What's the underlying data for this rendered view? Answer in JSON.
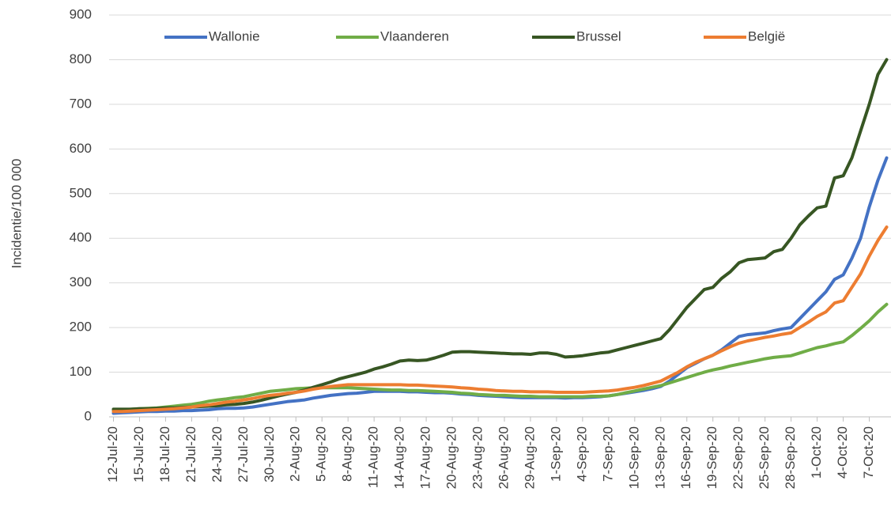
{
  "chart_data": {
    "type": "line",
    "y_label": "Incidentie/100 000",
    "categories": [
      "12-Jul-20",
      null,
      null,
      "15-Jul-20",
      null,
      null,
      "18-Jul-20",
      null,
      null,
      "21-Jul-20",
      null,
      null,
      "24-Jul-20",
      null,
      null,
      "27-Jul-20",
      null,
      null,
      "30-Jul-20",
      null,
      null,
      "2-Aug-20",
      null,
      null,
      "5-Aug-20",
      null,
      null,
      "8-Aug-20",
      null,
      null,
      "11-Aug-20",
      null,
      null,
      "14-Aug-20",
      null,
      null,
      "17-Aug-20",
      null,
      null,
      "20-Aug-20",
      null,
      null,
      "23-Aug-20",
      null,
      null,
      "26-Aug-20",
      null,
      null,
      "29-Aug-20",
      null,
      null,
      "1-Sep-20",
      null,
      null,
      "4-Sep-20",
      null,
      null,
      "7-Sep-20",
      null,
      null,
      "10-Sep-20",
      null,
      null,
      "13-Sep-20",
      null,
      null,
      "16-Sep-20",
      null,
      null,
      "19-Sep-20",
      null,
      null,
      "22-Sep-20",
      null,
      null,
      "25-Sep-20",
      null,
      null,
      "28-Sep-20",
      null,
      null,
      "1-Oct-20",
      null,
      null,
      "4-Oct-20",
      null,
      null,
      "7-Oct-20",
      null,
      null
    ],
    "series": [
      {
        "name": "Wallonie",
        "color": "#4472c4",
        "values": [
          8,
          9,
          10,
          11,
          12,
          12,
          13,
          13,
          14,
          14,
          15,
          16,
          18,
          19,
          19,
          20,
          22,
          25,
          28,
          31,
          34,
          36,
          38,
          42,
          45,
          48,
          50,
          52,
          53,
          55,
          57,
          57,
          57,
          57,
          56,
          56,
          55,
          54,
          54,
          53,
          51,
          50,
          48,
          47,
          46,
          45,
          44,
          43,
          43,
          43,
          43,
          43,
          42,
          43,
          43,
          44,
          45,
          47,
          50,
          53,
          56,
          59,
          63,
          68,
          80,
          95,
          110,
          120,
          130,
          138,
          150,
          165,
          180,
          184,
          186,
          188,
          193,
          197,
          200,
          220,
          240,
          260,
          280,
          308,
          318,
          355,
          400,
          470,
          530,
          580
        ]
      },
      {
        "name": "Vlaanderen",
        "color": "#70ad47",
        "values": [
          15,
          16,
          17,
          18,
          19,
          20,
          22,
          24,
          26,
          28,
          31,
          35,
          38,
          40,
          43,
          45,
          49,
          53,
          57,
          59,
          61,
          63,
          64,
          65,
          65,
          65,
          65,
          65,
          64,
          63,
          62,
          61,
          60,
          60,
          59,
          59,
          58,
          57,
          56,
          55,
          53,
          52,
          50,
          49,
          48,
          48,
          47,
          46,
          46,
          45,
          45,
          45,
          45,
          45,
          45,
          46,
          46,
          47,
          50,
          54,
          58,
          62,
          66,
          70,
          76,
          82,
          88,
          94,
          100,
          105,
          109,
          114,
          118,
          122,
          126,
          130,
          133,
          135,
          137,
          143,
          149,
          155,
          159,
          164,
          168,
          182,
          198,
          215,
          235,
          252
        ]
      },
      {
        "name": "Brussel",
        "color": "#375623",
        "values": [
          17,
          17,
          17,
          18,
          18,
          19,
          20,
          20,
          21,
          22,
          23,
          24,
          25,
          27,
          28,
          30,
          33,
          37,
          42,
          47,
          51,
          55,
          60,
          66,
          72,
          78,
          85,
          90,
          95,
          100,
          107,
          112,
          118,
          125,
          127,
          126,
          127,
          132,
          138,
          145,
          146,
          146,
          145,
          144,
          143,
          142,
          141,
          141,
          140,
          143,
          143,
          140,
          134,
          135,
          137,
          140,
          143,
          145,
          150,
          155,
          160,
          165,
          170,
          175,
          195,
          220,
          245,
          265,
          285,
          290,
          310,
          325,
          345,
          352,
          354,
          356,
          370,
          375,
          400,
          430,
          450,
          468,
          472,
          535,
          540,
          580,
          640,
          700,
          767,
          800
        ]
      },
      {
        "name": "België",
        "color": "#ed7d31",
        "values": [
          12,
          12,
          13,
          14,
          15,
          16,
          17,
          18,
          20,
          22,
          25,
          27,
          30,
          33,
          35,
          38,
          41,
          45,
          48,
          50,
          53,
          55,
          58,
          62,
          65,
          68,
          70,
          72,
          72,
          72,
          72,
          72,
          72,
          72,
          71,
          71,
          70,
          69,
          68,
          67,
          65,
          64,
          62,
          61,
          59,
          58,
          57,
          57,
          56,
          56,
          56,
          55,
          55,
          55,
          55,
          56,
          57,
          58,
          60,
          63,
          66,
          70,
          75,
          80,
          90,
          100,
          112,
          122,
          130,
          138,
          148,
          157,
          165,
          170,
          174,
          178,
          181,
          185,
          188,
          200,
          212,
          225,
          235,
          255,
          260,
          290,
          320,
          360,
          395,
          425
        ]
      }
    ],
    "ylim": [
      0,
      900
    ],
    "yticks": [
      0,
      100,
      200,
      300,
      400,
      500,
      600,
      700,
      800,
      900
    ],
    "grid": true
  }
}
